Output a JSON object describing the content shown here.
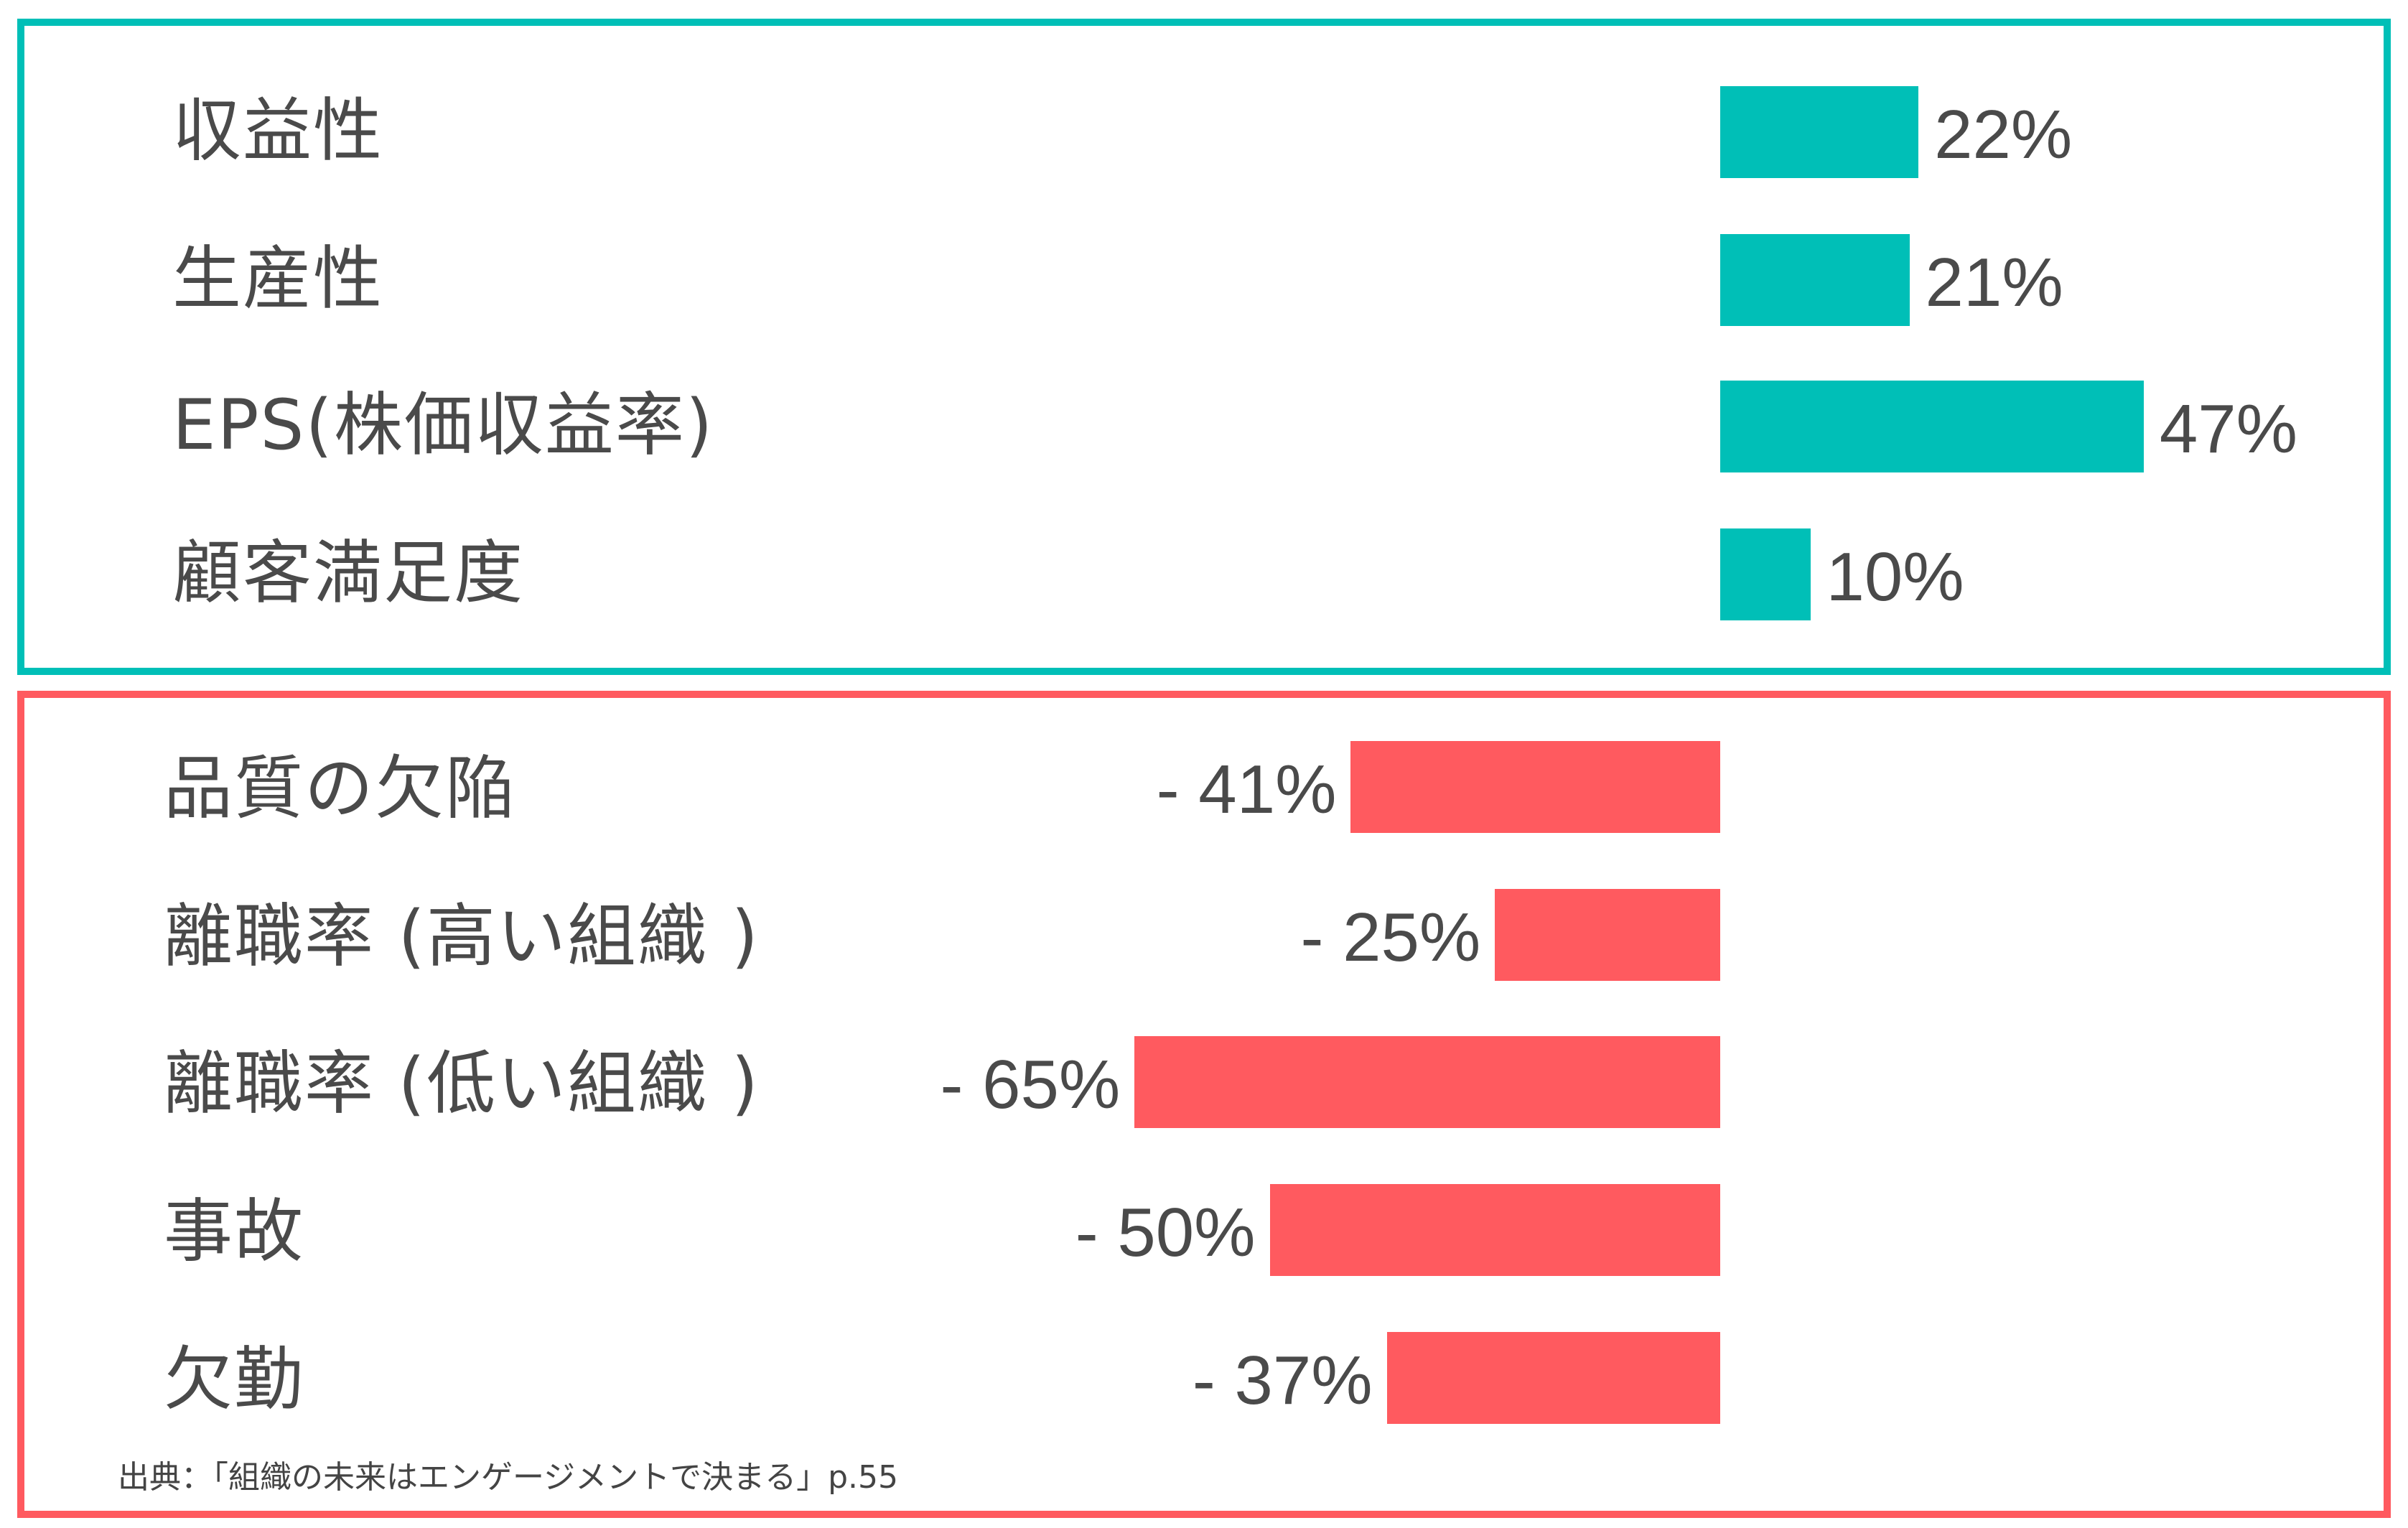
{
  "chart_data": [
    {
      "type": "bar",
      "orientation": "horizontal",
      "color": "#00bfb7",
      "categories": [
        "収益性",
        "生産性",
        "EPS(株価収益率)",
        "顧客満足度"
      ],
      "values": [
        22,
        21,
        47,
        10
      ],
      "value_labels": [
        "22%",
        "21%",
        "47%",
        "10%"
      ]
    },
    {
      "type": "bar",
      "orientation": "horizontal",
      "color": "#ff5a5f",
      "categories": [
        "品質の欠陥",
        "離職率 (高い組織 )",
        "離職率 (低い組織 )",
        "事故",
        "欠勤"
      ],
      "values": [
        -41,
        -25,
        -65,
        -50,
        -37
      ],
      "value_labels": [
        "- 41%",
        "- 25%",
        "- 65%",
        "- 50%",
        "- 37%"
      ]
    }
  ],
  "source_note": "出典：「組織の未来はエンゲージメントで決まる」p.55"
}
